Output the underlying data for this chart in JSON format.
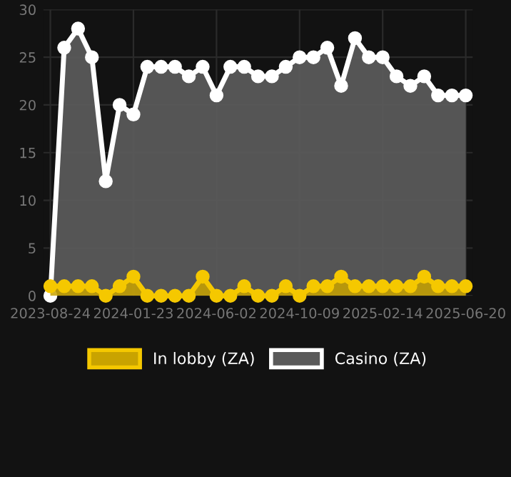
{
  "chart_data": {
    "type": "area",
    "categories": [
      "2023-08-24",
      null,
      null,
      null,
      null,
      null,
      "2024-01-23",
      null,
      null,
      null,
      null,
      null,
      "2024-06-02",
      null,
      null,
      null,
      null,
      null,
      "2024-10-09",
      null,
      null,
      null,
      null,
      null,
      "2025-02-14",
      null,
      null,
      null,
      null,
      null,
      "2025-06-20"
    ],
    "series": [
      {
        "name": "In lobby (ZA)",
        "color": "#f5c800",
        "values": [
          1,
          1,
          1,
          1,
          0,
          1,
          2,
          0,
          0,
          0,
          0,
          2,
          0,
          0,
          1,
          0,
          0,
          1,
          0,
          1,
          1,
          2,
          1,
          1,
          1,
          1,
          1,
          2,
          1,
          1,
          1
        ]
      },
      {
        "name": "Casino (ZA)",
        "color": "#ffffff",
        "values": [
          0,
          26,
          28,
          25,
          12,
          20,
          19,
          24,
          24,
          24,
          23,
          24,
          21,
          24,
          24,
          23,
          23,
          24,
          25,
          25,
          26,
          22,
          27,
          25,
          25,
          23,
          22,
          23,
          21,
          21,
          21
        ]
      }
    ],
    "ylim": [
      0,
      30
    ],
    "yticks": [
      0,
      5,
      10,
      15,
      20,
      25,
      30
    ],
    "grid": true,
    "legend": "bottom",
    "marker": "circle",
    "line_style": "solid"
  }
}
